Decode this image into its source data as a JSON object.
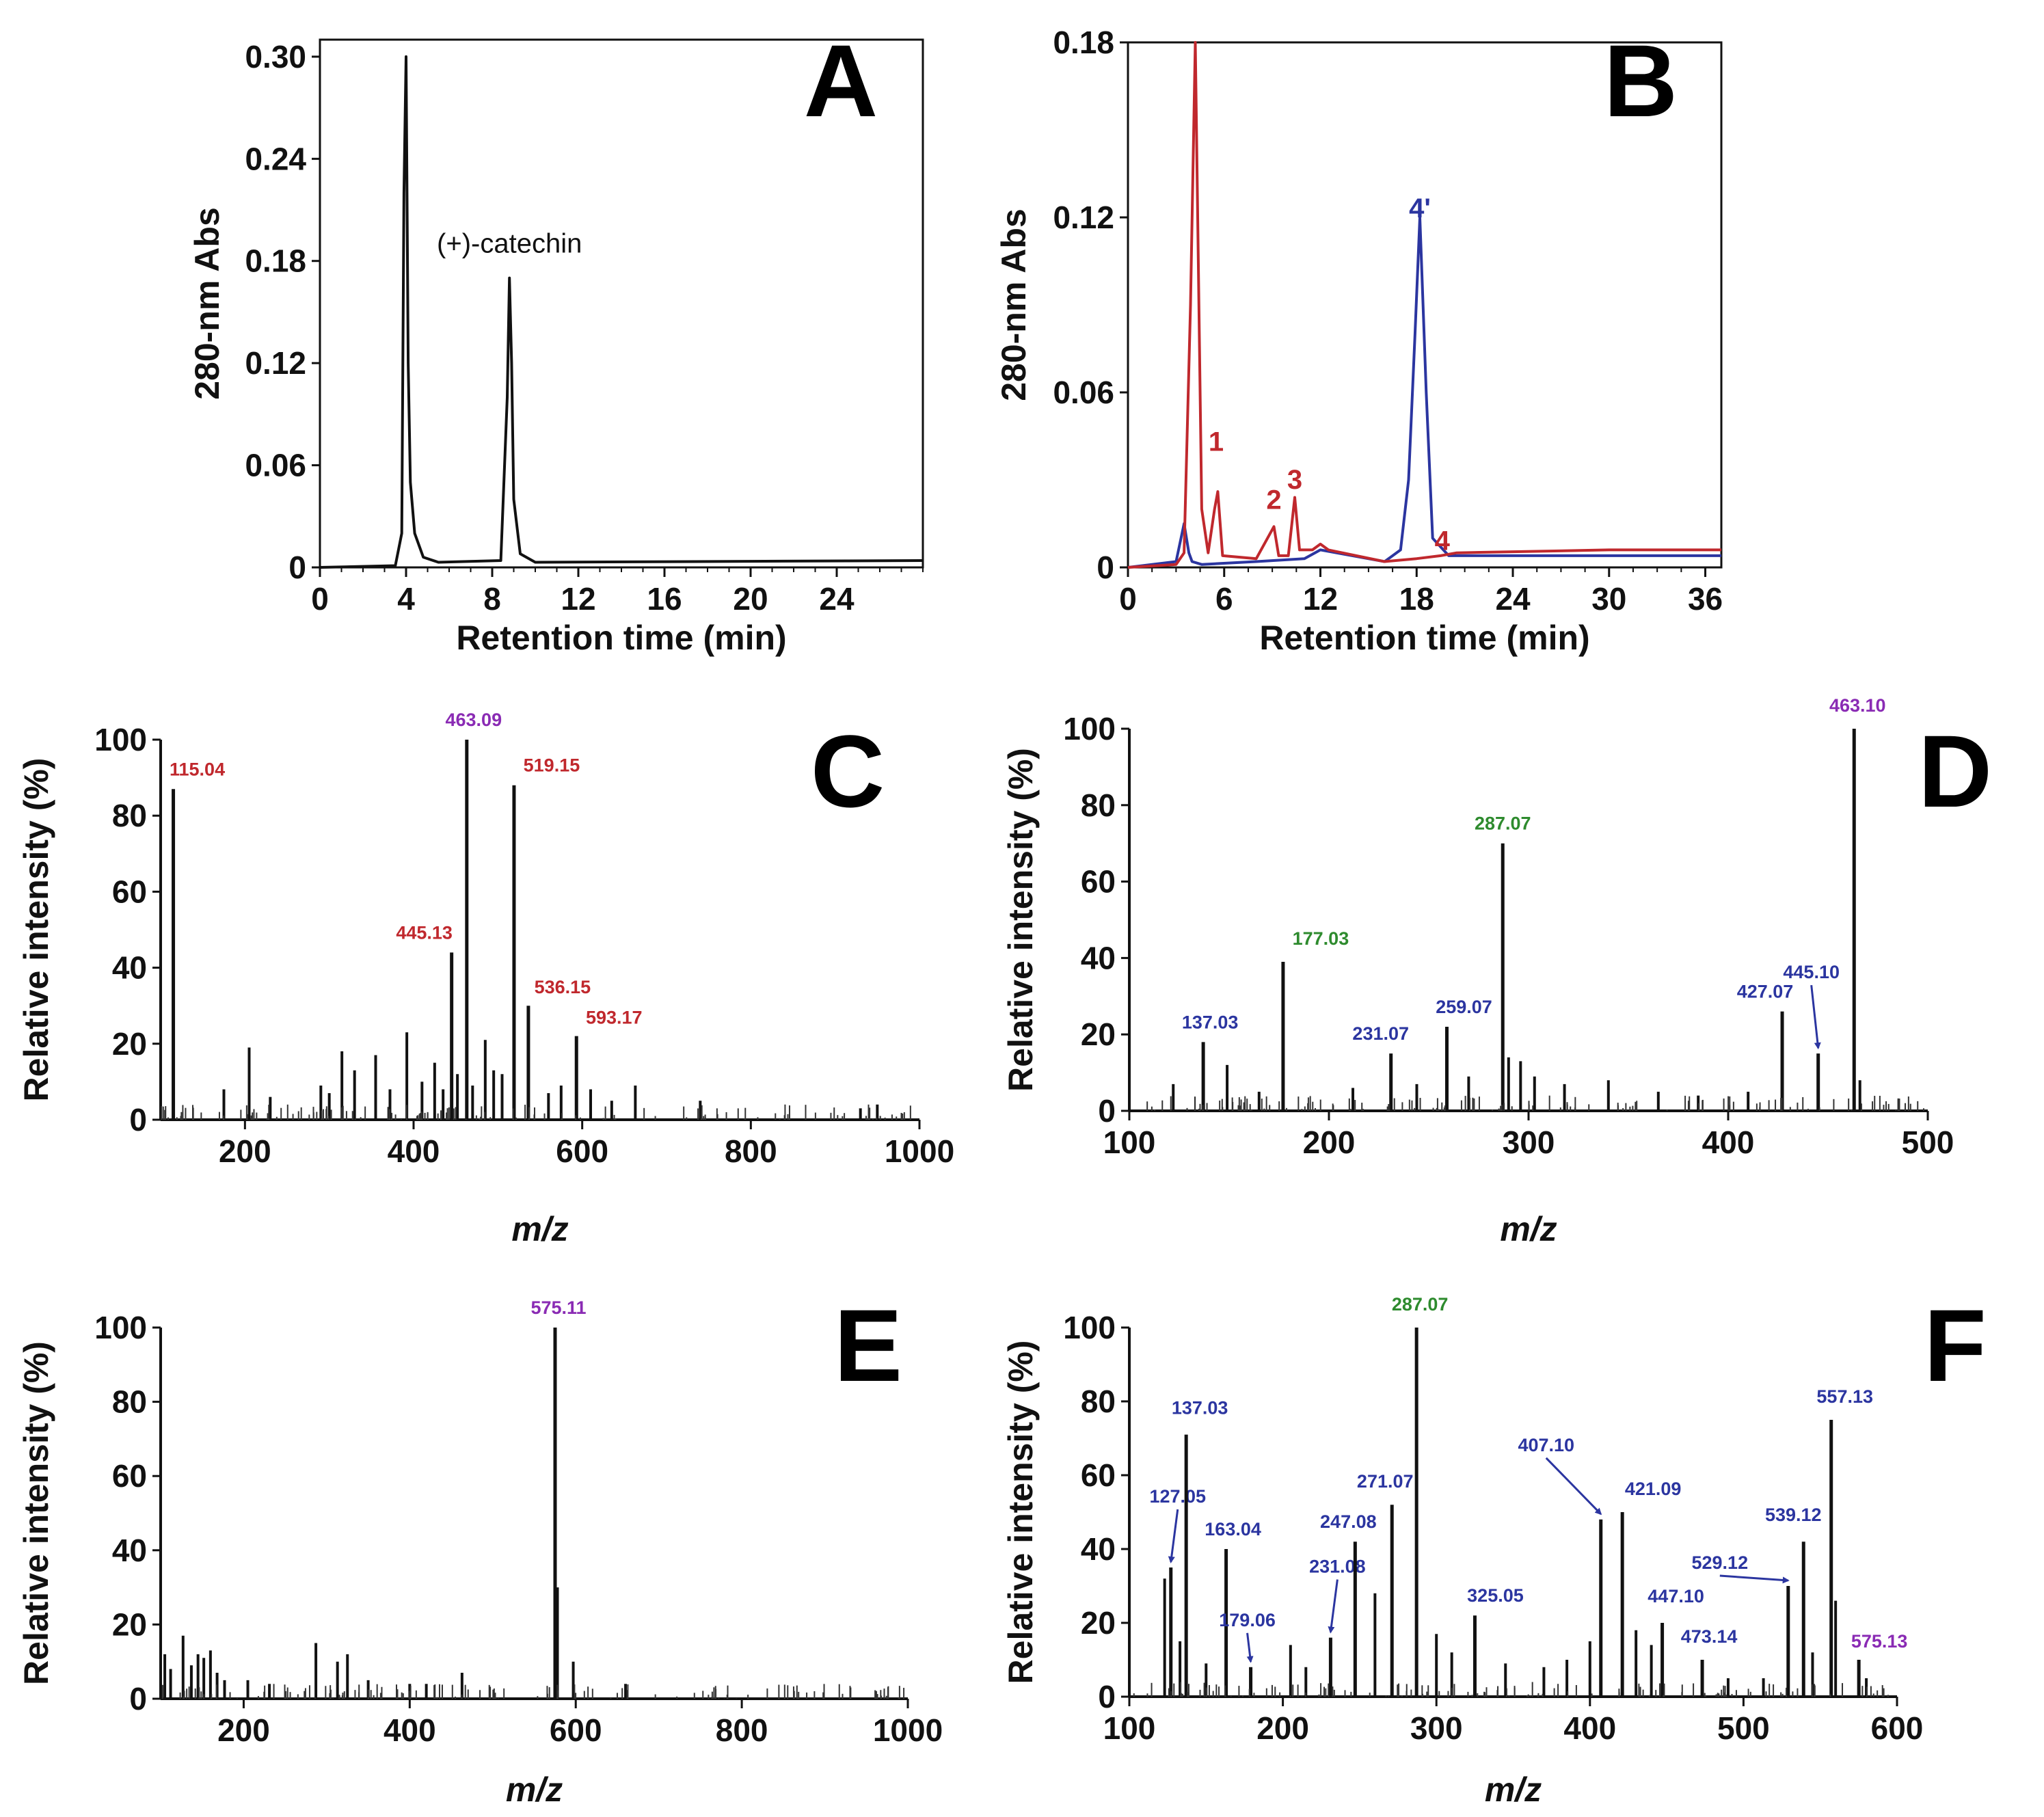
{
  "colors": {
    "black": "#111111",
    "red": "#c0282d",
    "blue": "#2b35a0",
    "purple": "#8a2bb4",
    "green": "#2e8b2e"
  },
  "chart_data": [
    {
      "panel": "A",
      "type": "line",
      "xlabel": "Retention time (min)",
      "ylabel": "280-nm Abs",
      "xlim": [
        0,
        28
      ],
      "ylim": [
        0,
        0.31
      ],
      "xticks": [
        0,
        4,
        8,
        12,
        16,
        20,
        24
      ],
      "xtick_labels": [
        "0",
        "4",
        "8",
        "12",
        "16",
        "20",
        "24"
      ],
      "yticks": [
        0,
        0.06,
        0.12,
        0.18,
        0.24,
        0.3
      ],
      "ytick_labels": [
        "0",
        "0.06",
        "0.12",
        "0.18",
        "0.24",
        "0.30"
      ],
      "annotations": [
        {
          "text": "(+)-catechin",
          "x": 8.8,
          "y": 0.185
        }
      ],
      "series": [
        {
          "color": "#111111",
          "x": [
            0,
            3.5,
            3.8,
            3.9,
            4.0,
            4.1,
            4.2,
            4.4,
            4.8,
            5.5,
            8.4,
            8.7,
            8.8,
            8.9,
            9.0,
            9.3,
            10.0,
            28
          ],
          "y": [
            0.0,
            0.001,
            0.02,
            0.22,
            0.3,
            0.12,
            0.05,
            0.02,
            0.006,
            0.003,
            0.004,
            0.1,
            0.17,
            0.12,
            0.04,
            0.008,
            0.003,
            0.004
          ]
        }
      ]
    },
    {
      "panel": "B",
      "type": "line",
      "xlabel": "Retention time  (min)",
      "ylabel": "280-nm Abs",
      "xlim": [
        0,
        37
      ],
      "ylim": [
        0,
        0.18
      ],
      "xticks": [
        0,
        6,
        12,
        18,
        24,
        30,
        36
      ],
      "xtick_labels": [
        "0",
        "6",
        "12",
        "18",
        "24",
        "30",
        "36"
      ],
      "yticks": [
        0,
        0.06,
        0.12,
        0.18
      ],
      "ytick_labels": [
        "0",
        "0.06",
        "0.12",
        "0.18"
      ],
      "annotations": [
        {
          "text": "1",
          "x": 5.5,
          "y": 0.04,
          "color": "red"
        },
        {
          "text": "2",
          "x": 9.1,
          "y": 0.02,
          "color": "red"
        },
        {
          "text": "3",
          "x": 10.4,
          "y": 0.027,
          "color": "red"
        },
        {
          "text": "4",
          "x": 19.6,
          "y": 0.006,
          "color": "red"
        },
        {
          "text": "4'",
          "x": 18.2,
          "y": 0.12,
          "color": "blue"
        }
      ],
      "series": [
        {
          "color": "#2b35a0",
          "x": [
            0,
            3.0,
            3.5,
            3.8,
            4.0,
            4.6,
            8.0,
            11.0,
            12.0,
            16.0,
            17.0,
            17.5,
            17.9,
            18.2,
            18.6,
            19.0,
            20.0,
            37
          ],
          "y": [
            0.0,
            0.002,
            0.015,
            0.005,
            0.002,
            0.001,
            0.002,
            0.003,
            0.006,
            0.002,
            0.006,
            0.03,
            0.08,
            0.12,
            0.06,
            0.01,
            0.004,
            0.004
          ]
        },
        {
          "color": "#c0282d",
          "x": [
            0,
            3.0,
            3.5,
            3.9,
            4.2,
            4.6,
            5.0,
            5.4,
            5.6,
            5.9,
            8.0,
            9.1,
            9.4,
            10.0,
            10.4,
            10.7,
            11.5,
            12.0,
            12.5,
            16.0,
            18.0,
            19.5,
            20.5,
            30.0,
            37
          ],
          "y": [
            0.0,
            0.001,
            0.005,
            0.09,
            0.18,
            0.02,
            0.005,
            0.02,
            0.026,
            0.004,
            0.003,
            0.014,
            0.004,
            0.004,
            0.024,
            0.006,
            0.006,
            0.008,
            0.006,
            0.002,
            0.003,
            0.004,
            0.005,
            0.006,
            0.006
          ]
        }
      ]
    },
    {
      "panel": "C",
      "type": "bar",
      "xlabel": "m/z",
      "ylabel": "Relative intensity (%)",
      "xlim": [
        100,
        1000
      ],
      "ylim": [
        0,
        100
      ],
      "xticks": [
        200,
        400,
        600,
        800,
        1000
      ],
      "xtick_labels": [
        "200",
        "400",
        "600",
        "800",
        "1000"
      ],
      "yticks": [
        0,
        20,
        40,
        60,
        80,
        100
      ],
      "ytick_labels": [
        "0",
        "20",
        "40",
        "60",
        "80",
        "100"
      ],
      "peaks": [
        {
          "mz": 115.04,
          "intensity": 87,
          "label": "115.04",
          "color": "red"
        },
        {
          "mz": 445.13,
          "intensity": 44,
          "label": "445.13",
          "color": "red"
        },
        {
          "mz": 463.09,
          "intensity": 100,
          "label": "463.09",
          "color": "purple"
        },
        {
          "mz": 519.15,
          "intensity": 88,
          "label": "519.15",
          "color": "red"
        },
        {
          "mz": 536.15,
          "intensity": 30,
          "label": "536.15",
          "color": "red"
        },
        {
          "mz": 593.17,
          "intensity": 22,
          "label": "593.17",
          "color": "red"
        },
        {
          "mz": 205,
          "intensity": 19
        },
        {
          "mz": 175,
          "intensity": 8
        },
        {
          "mz": 230,
          "intensity": 6
        },
        {
          "mz": 290,
          "intensity": 9
        },
        {
          "mz": 300,
          "intensity": 7
        },
        {
          "mz": 315,
          "intensity": 18
        },
        {
          "mz": 330,
          "intensity": 13
        },
        {
          "mz": 355,
          "intensity": 17
        },
        {
          "mz": 372,
          "intensity": 8
        },
        {
          "mz": 392,
          "intensity": 23
        },
        {
          "mz": 410,
          "intensity": 10
        },
        {
          "mz": 425,
          "intensity": 15
        },
        {
          "mz": 435,
          "intensity": 8
        },
        {
          "mz": 452,
          "intensity": 12
        },
        {
          "mz": 470,
          "intensity": 9
        },
        {
          "mz": 485,
          "intensity": 21
        },
        {
          "mz": 495,
          "intensity": 13
        },
        {
          "mz": 505,
          "intensity": 12
        },
        {
          "mz": 560,
          "intensity": 7
        },
        {
          "mz": 575,
          "intensity": 9
        },
        {
          "mz": 610,
          "intensity": 8
        },
        {
          "mz": 635,
          "intensity": 5
        },
        {
          "mz": 663,
          "intensity": 9
        },
        {
          "mz": 740,
          "intensity": 5
        },
        {
          "mz": 930,
          "intensity": 3
        },
        {
          "mz": 950,
          "intensity": 4
        }
      ]
    },
    {
      "panel": "D",
      "type": "bar",
      "xlabel": "m/z",
      "ylabel": "Relative intensity (%)",
      "xlim": [
        100,
        500
      ],
      "ylim": [
        0,
        100
      ],
      "xticks": [
        100,
        200,
        300,
        400,
        500
      ],
      "xtick_labels": [
        "100",
        "200",
        "300",
        "400",
        "500"
      ],
      "yticks": [
        0,
        20,
        40,
        60,
        80,
        100
      ],
      "ytick_labels": [
        "0",
        "20",
        "40",
        "60",
        "80",
        "100"
      ],
      "peaks": [
        {
          "mz": 137.03,
          "intensity": 18,
          "label": "137.03",
          "color": "blue"
        },
        {
          "mz": 177.03,
          "intensity": 39,
          "label": "177.03",
          "color": "green"
        },
        {
          "mz": 231.07,
          "intensity": 15,
          "label": "231.07",
          "color": "blue"
        },
        {
          "mz": 259.07,
          "intensity": 22,
          "label": "259.07",
          "color": "blue"
        },
        {
          "mz": 287.07,
          "intensity": 70,
          "label": "287.07",
          "color": "green"
        },
        {
          "mz": 427.07,
          "intensity": 26,
          "label": "427.07",
          "color": "blue"
        },
        {
          "mz": 445.1,
          "intensity": 15,
          "label": "445.10",
          "color": "blue"
        },
        {
          "mz": 463.1,
          "intensity": 100,
          "label": "463.10",
          "color": "purple"
        },
        {
          "mz": 122,
          "intensity": 7
        },
        {
          "mz": 149,
          "intensity": 12
        },
        {
          "mz": 165,
          "intensity": 5
        },
        {
          "mz": 212,
          "intensity": 6
        },
        {
          "mz": 244,
          "intensity": 7
        },
        {
          "mz": 270,
          "intensity": 9
        },
        {
          "mz": 290,
          "intensity": 14
        },
        {
          "mz": 296,
          "intensity": 13
        },
        {
          "mz": 303,
          "intensity": 9
        },
        {
          "mz": 318,
          "intensity": 7
        },
        {
          "mz": 340,
          "intensity": 8
        },
        {
          "mz": 365,
          "intensity": 5
        },
        {
          "mz": 385,
          "intensity": 4
        },
        {
          "mz": 410,
          "intensity": 5
        },
        {
          "mz": 466,
          "intensity": 8
        }
      ]
    },
    {
      "panel": "E",
      "type": "bar",
      "xlabel": "m/z",
      "ylabel": "Relative intensity (%)",
      "xlim": [
        100,
        1000
      ],
      "ylim": [
        0,
        100
      ],
      "xticks": [
        200,
        400,
        600,
        800,
        1000
      ],
      "xtick_labels": [
        "200",
        "400",
        "600",
        "800",
        "1000"
      ],
      "yticks": [
        0,
        20,
        40,
        60,
        80,
        100
      ],
      "ytick_labels": [
        "0",
        "20",
        "40",
        "60",
        "80",
        "100"
      ],
      "peaks": [
        {
          "mz": 575.11,
          "intensity": 100,
          "label": "575.11",
          "color": "purple"
        },
        {
          "mz": 105,
          "intensity": 12
        },
        {
          "mz": 112,
          "intensity": 8
        },
        {
          "mz": 127,
          "intensity": 17
        },
        {
          "mz": 137,
          "intensity": 9
        },
        {
          "mz": 145,
          "intensity": 12
        },
        {
          "mz": 152,
          "intensity": 11
        },
        {
          "mz": 160,
          "intensity": 13
        },
        {
          "mz": 168,
          "intensity": 7
        },
        {
          "mz": 177,
          "intensity": 5
        },
        {
          "mz": 205,
          "intensity": 5
        },
        {
          "mz": 231,
          "intensity": 4
        },
        {
          "mz": 287,
          "intensity": 15
        },
        {
          "mz": 313,
          "intensity": 10
        },
        {
          "mz": 325,
          "intensity": 12
        },
        {
          "mz": 350,
          "intensity": 5
        },
        {
          "mz": 400,
          "intensity": 4
        },
        {
          "mz": 420,
          "intensity": 4
        },
        {
          "mz": 463,
          "intensity": 7
        },
        {
          "mz": 578,
          "intensity": 30
        },
        {
          "mz": 597,
          "intensity": 10
        },
        {
          "mz": 660,
          "intensity": 4
        }
      ]
    },
    {
      "panel": "F",
      "type": "bar",
      "xlabel": "m/z",
      "ylabel": "Relative intensity (%)",
      "xlim": [
        100,
        600
      ],
      "ylim": [
        0,
        100
      ],
      "xticks": [
        100,
        200,
        300,
        400,
        500,
        600
      ],
      "xtick_labels": [
        "100",
        "200",
        "300",
        "400",
        "500",
        "600"
      ],
      "yticks": [
        0,
        20,
        40,
        60,
        80,
        100
      ],
      "ytick_labels": [
        "0",
        "20",
        "40",
        "60",
        "80",
        "100"
      ],
      "peaks": [
        {
          "mz": 127.05,
          "intensity": 35,
          "label": "127.05",
          "color": "blue"
        },
        {
          "mz": 137.03,
          "intensity": 71,
          "label": "137.03",
          "color": "blue"
        },
        {
          "mz": 163.04,
          "intensity": 40,
          "label": "163.04",
          "color": "blue"
        },
        {
          "mz": 179.06,
          "intensity": 8,
          "label": "179.06",
          "color": "blue"
        },
        {
          "mz": 231.08,
          "intensity": 16,
          "label": "231.08",
          "color": "blue"
        },
        {
          "mz": 247.08,
          "intensity": 42,
          "label": "247.08",
          "color": "blue"
        },
        {
          "mz": 271.07,
          "intensity": 52,
          "label": "271.07",
          "color": "blue"
        },
        {
          "mz": 287.07,
          "intensity": 100,
          "label": "287.07",
          "color": "green"
        },
        {
          "mz": 325.05,
          "intensity": 22,
          "label": "325.05",
          "color": "blue"
        },
        {
          "mz": 407.1,
          "intensity": 48,
          "label": "407.10",
          "color": "blue"
        },
        {
          "mz": 421.09,
          "intensity": 50,
          "label": "421.09",
          "color": "blue"
        },
        {
          "mz": 447.1,
          "intensity": 20,
          "label": "447.10",
          "color": "blue"
        },
        {
          "mz": 473.14,
          "intensity": 10,
          "label": "473.14",
          "color": "blue"
        },
        {
          "mz": 529.12,
          "intensity": 30,
          "label": "529.12",
          "color": "blue"
        },
        {
          "mz": 539.12,
          "intensity": 42,
          "label": "539.12",
          "color": "blue"
        },
        {
          "mz": 557.13,
          "intensity": 75,
          "label": "557.13",
          "color": "blue"
        },
        {
          "mz": 575.13,
          "intensity": 10,
          "label": "575.13",
          "color": "purple"
        },
        {
          "mz": 123,
          "intensity": 32
        },
        {
          "mz": 133,
          "intensity": 15
        },
        {
          "mz": 150,
          "intensity": 9
        },
        {
          "mz": 205,
          "intensity": 14
        },
        {
          "mz": 215,
          "intensity": 8
        },
        {
          "mz": 260,
          "intensity": 28
        },
        {
          "mz": 300,
          "intensity": 17
        },
        {
          "mz": 310,
          "intensity": 12
        },
        {
          "mz": 345,
          "intensity": 9
        },
        {
          "mz": 370,
          "intensity": 8
        },
        {
          "mz": 385,
          "intensity": 10
        },
        {
          "mz": 400,
          "intensity": 15
        },
        {
          "mz": 430,
          "intensity": 18
        },
        {
          "mz": 440,
          "intensity": 14
        },
        {
          "mz": 490,
          "intensity": 5
        },
        {
          "mz": 513,
          "intensity": 5
        },
        {
          "mz": 545,
          "intensity": 12
        },
        {
          "mz": 560,
          "intensity": 26
        },
        {
          "mz": 580,
          "intensity": 5
        }
      ]
    }
  ]
}
